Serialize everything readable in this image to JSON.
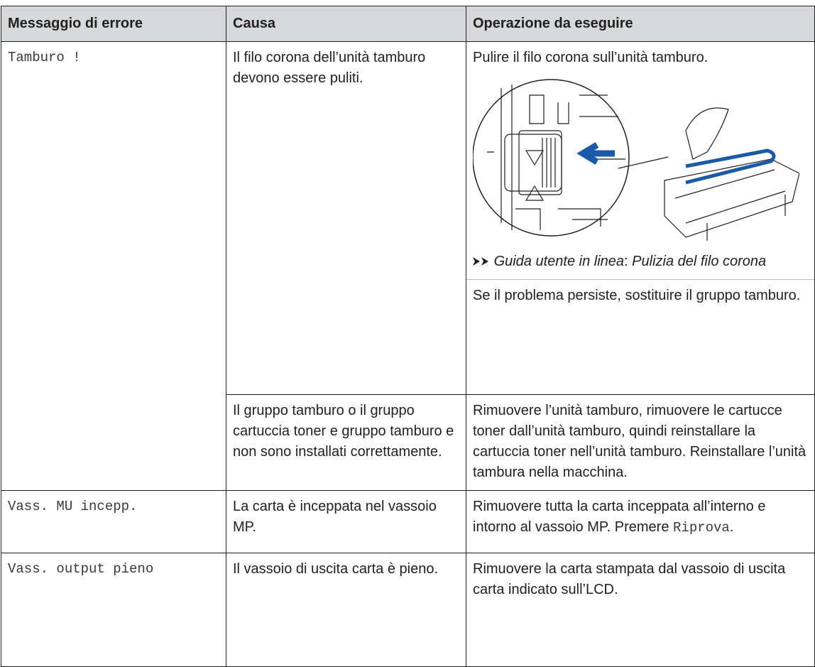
{
  "table": {
    "header": [
      "Messaggio di errore",
      "Causa",
      "Operazione da eseguire"
    ],
    "rows": [
      {
        "message": "Tamburo !",
        "causes": [
          {
            "cause": "Il filo corona dell’unità tamburo devono essere puliti.",
            "step": "Pulire il filo corona sull’unità tamburo.",
            "link_label": "Guida utente in linea",
            "link_sep": ":",
            "link_topic": "Pulizia del filo corona",
            "note": "Se il problema persiste, sostituire il gruppo tamburo."
          },
          {
            "cause": "Il gruppo tamburo o il gruppo cartuccia toner e gruppo tamburo e non sono installati correttamente.",
            "action": "Rimuovere l’unità tamburo, rimuovere le cartucce toner dall’unità tamburo, quindi reinstallare la cartuccia toner nell’unità tamburo. Reinstallare l’unità tambura nella macchina."
          }
        ]
      },
      {
        "message": "Vass. MU incepp.",
        "cause": "La carta è inceppata nel vassoio MP.",
        "action": "Rimuovere tutta la carta inceppata all’interno e intorno al vassoio MP.",
        "action_prefix": "Premere",
        "action_key": "Riprova",
        "action_suffix": "."
      },
      {
        "message": "Vass. output pieno",
        "cause": "Il vassoio di uscita carta è pieno.",
        "action": "Rimuovere la carta stampata dal vassoio di uscita carta indicato sull’LCD."
      }
    ]
  }
}
